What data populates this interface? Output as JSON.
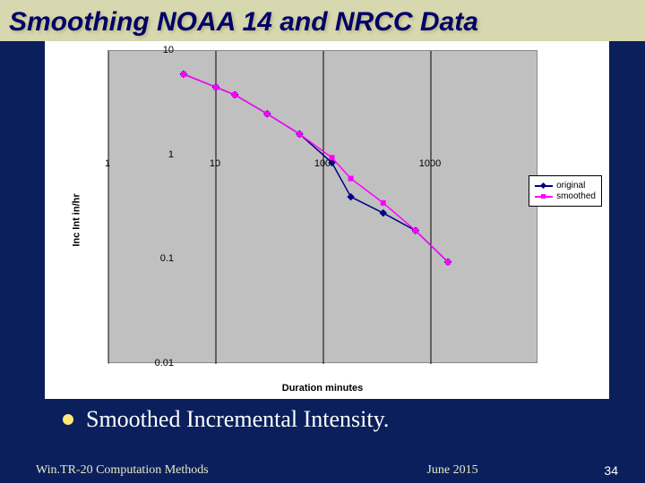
{
  "title": "Smoothing NOAA 14 and NRCC Data",
  "chart": {
    "type": "line",
    "xlabel": "Duration  minutes",
    "ylabel": "Inc Int  in/hr",
    "xscale": "log",
    "yscale": "log",
    "xlim": [
      1,
      10000
    ],
    "ylim": [
      0.01,
      10
    ],
    "xticks": [
      1,
      10,
      100,
      1000
    ],
    "yticks": [
      0.01,
      0.1,
      1,
      10
    ],
    "background_color": "#c0c0c0",
    "grid_color": "#000000",
    "series": [
      {
        "name": "original",
        "color": "#000080",
        "marker": "diamond",
        "marker_color": "#000080",
        "points": [
          [
            5,
            6.0
          ],
          [
            10,
            4.5
          ],
          [
            15,
            3.8
          ],
          [
            30,
            2.5
          ],
          [
            60,
            1.6
          ],
          [
            120,
            0.85
          ],
          [
            180,
            0.4
          ],
          [
            360,
            0.28
          ],
          [
            720,
            0.19
          ],
          [
            1440,
            0.095
          ]
        ]
      },
      {
        "name": "smoothed",
        "color": "#ff00ff",
        "marker": "square",
        "marker_color": "#ff00ff",
        "points": [
          [
            5,
            6.0
          ],
          [
            10,
            4.5
          ],
          [
            15,
            3.8
          ],
          [
            30,
            2.5
          ],
          [
            60,
            1.6
          ],
          [
            120,
            0.95
          ],
          [
            180,
            0.6
          ],
          [
            360,
            0.35
          ],
          [
            720,
            0.19
          ],
          [
            1440,
            0.095
          ]
        ]
      }
    ],
    "legend_position": "right"
  },
  "bullet": "Smoothed Incremental Intensity.",
  "footer": {
    "left": "Win.TR-20 Computation Methods",
    "mid": "June 2015",
    "page": "34"
  }
}
